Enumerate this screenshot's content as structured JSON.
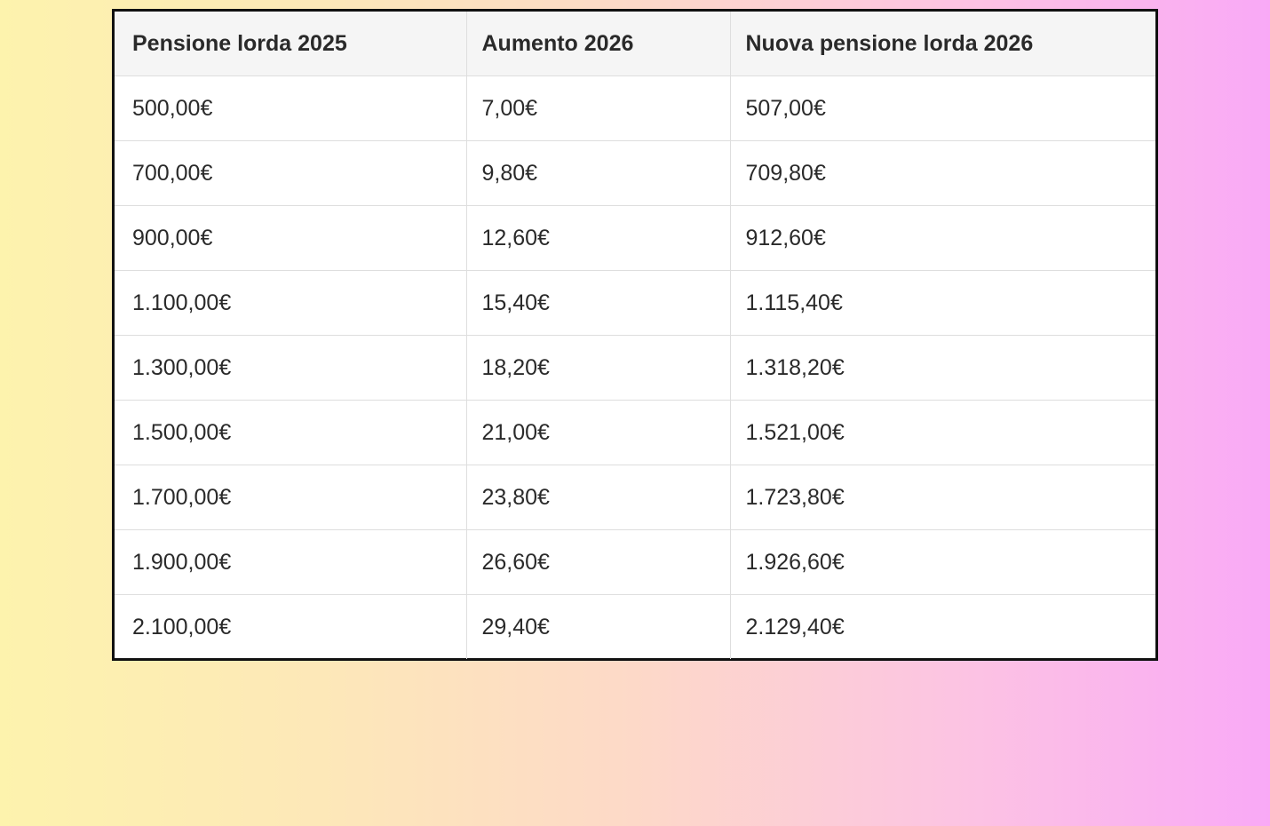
{
  "table": {
    "headers": [
      "Pensione lorda 2025",
      "Aumento 2026",
      "Nuova pensione lorda 2026"
    ],
    "rows": [
      [
        "500,00€",
        "7,00€",
        "507,00€"
      ],
      [
        "700,00€",
        "9,80€",
        "709,80€"
      ],
      [
        "900,00€",
        "12,60€",
        "912,60€"
      ],
      [
        "1.100,00€",
        "15,40€",
        "1.115,40€"
      ],
      [
        "1.300,00€",
        "18,20€",
        "1.318,20€"
      ],
      [
        "1.500,00€",
        "21,00€",
        "1.521,00€"
      ],
      [
        "1.700,00€",
        "23,80€",
        "1.723,80€"
      ],
      [
        "1.900,00€",
        "26,60€",
        "1.926,60€"
      ],
      [
        "2.100,00€",
        "29,40€",
        "2.129,40€"
      ]
    ]
  }
}
